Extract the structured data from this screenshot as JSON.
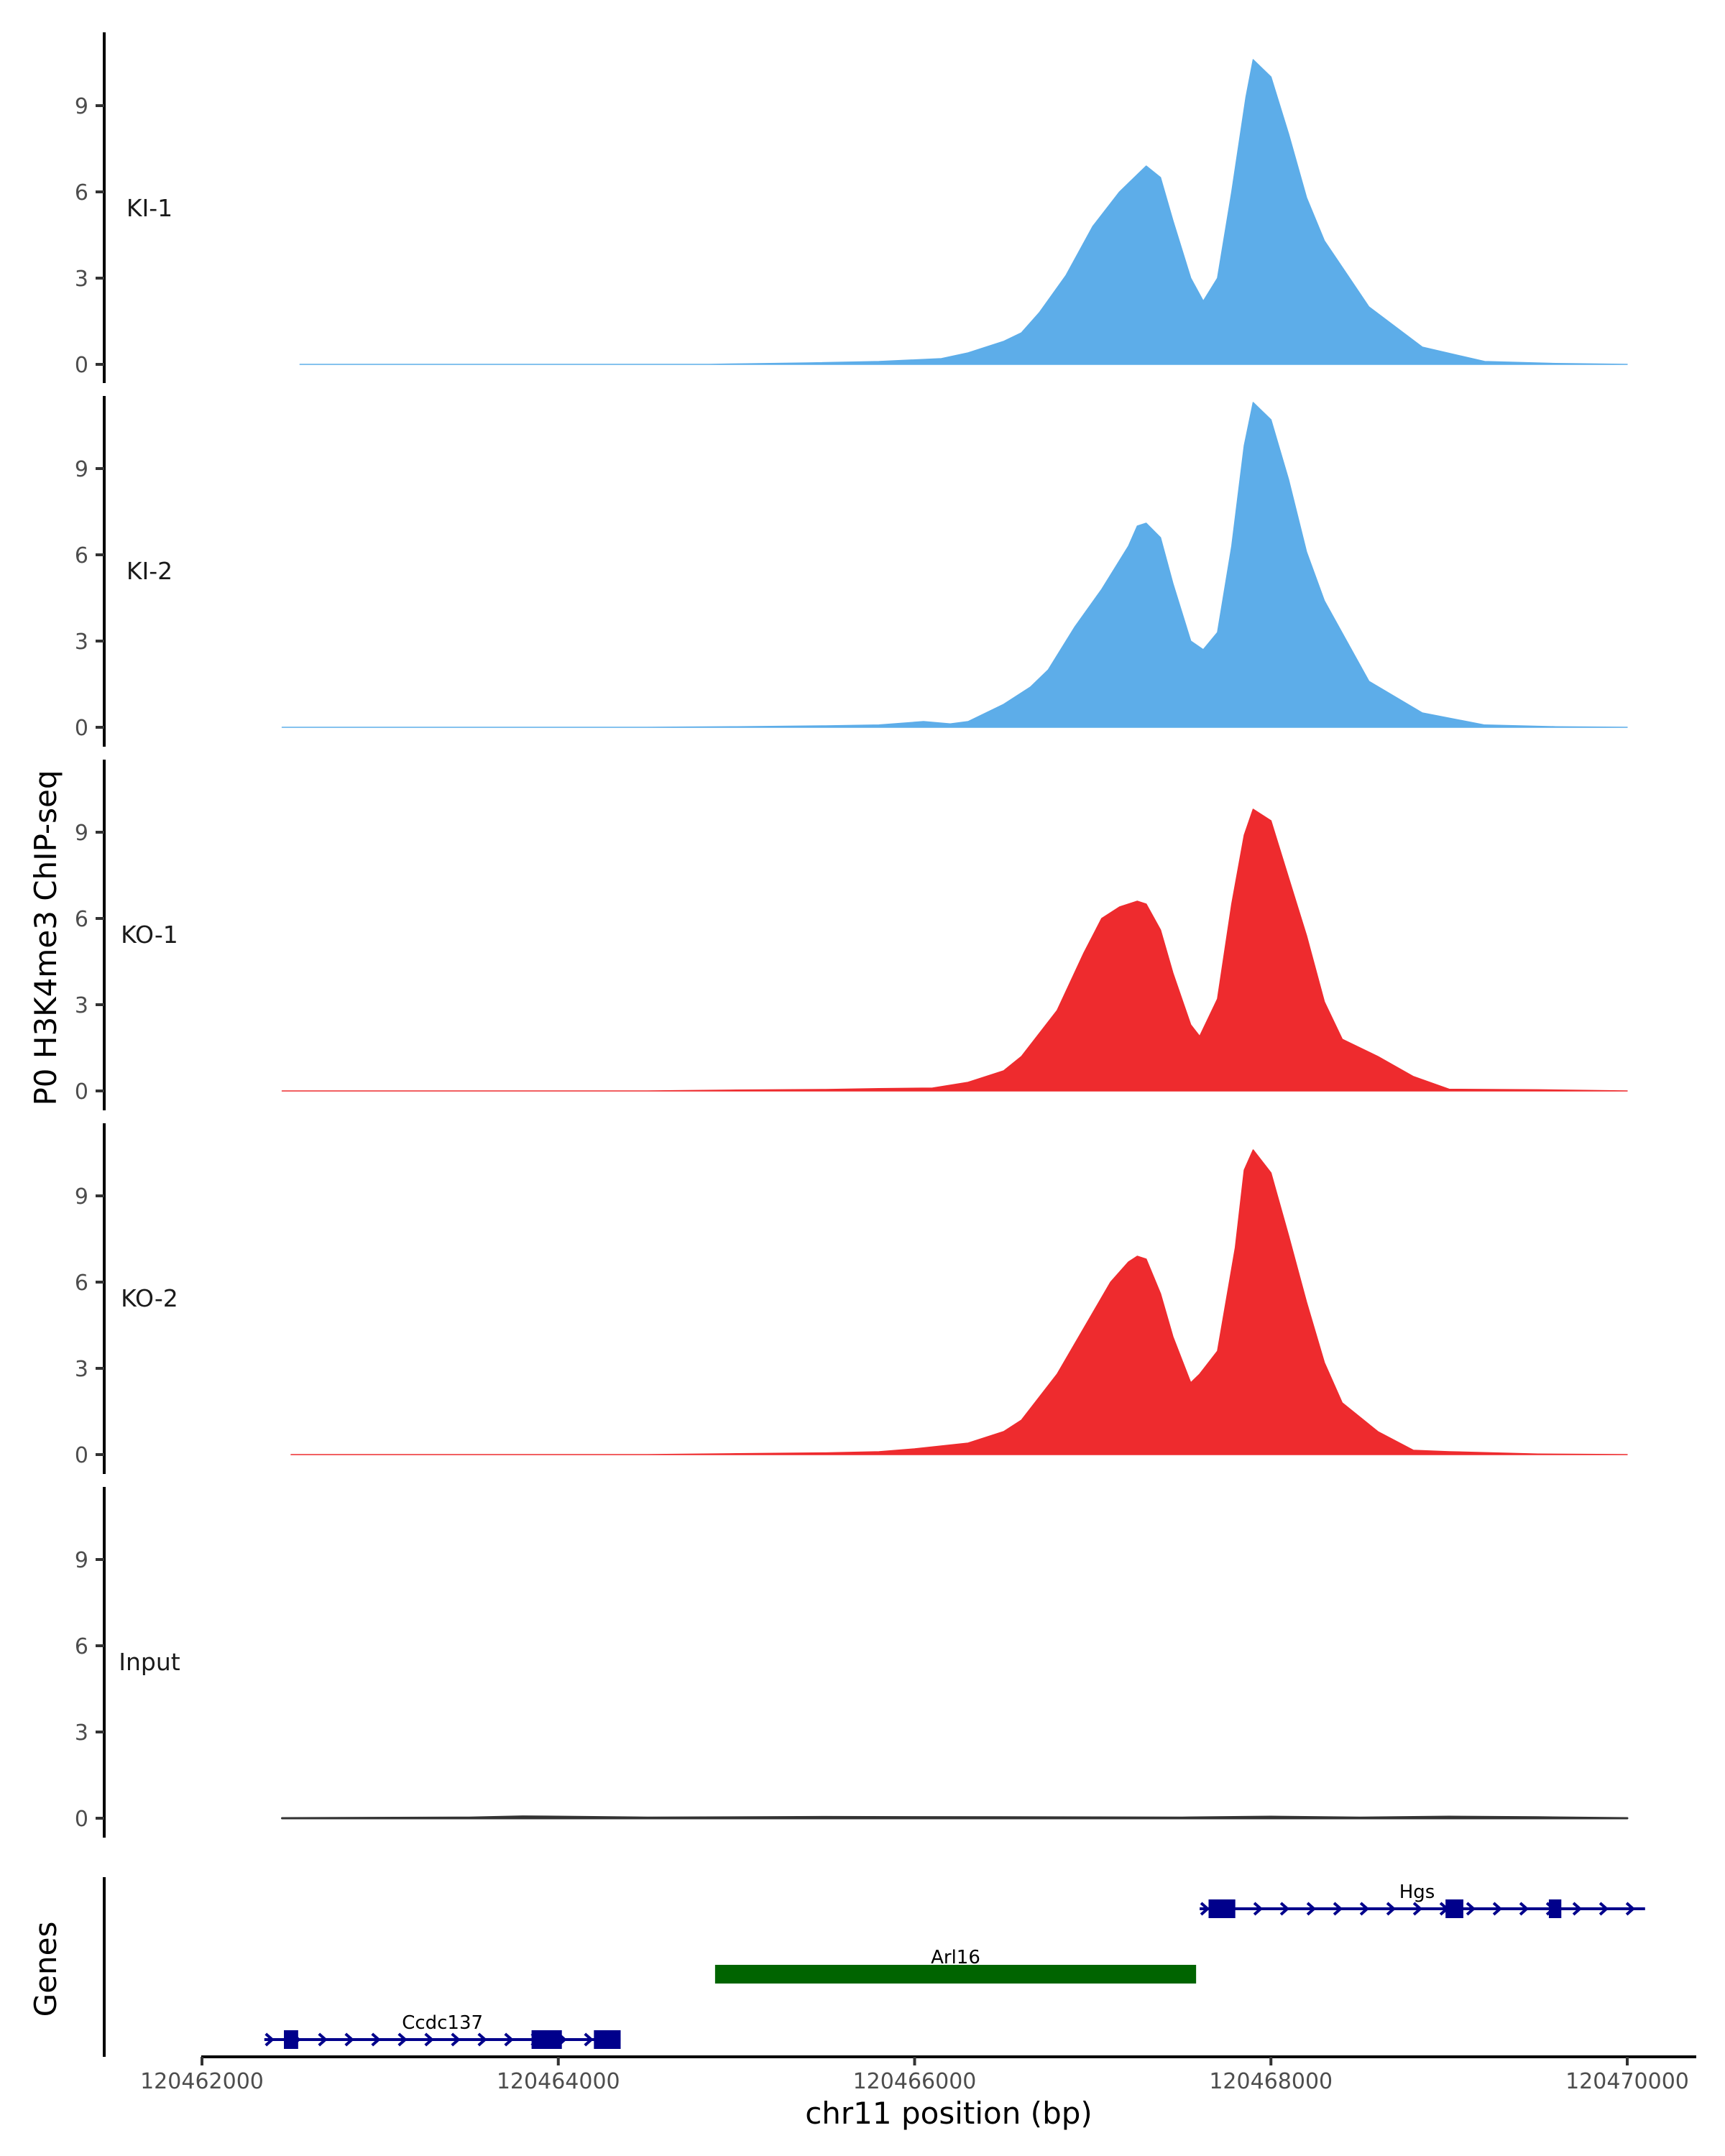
{
  "chart_data": {
    "type": "area",
    "title": "",
    "ylabel": "P0 H3K4me3 ChIP-seq",
    "xlabel": "chr11 position (bp)",
    "xlim": [
      120462000,
      120470400
    ],
    "ylim": [
      0,
      11.5
    ],
    "yticks": [
      0,
      3,
      6,
      9
    ],
    "xticks": [
      120462000,
      120464000,
      120466000,
      120468000,
      120470000
    ],
    "xtick_labels": [
      "120462000",
      "120464000",
      "120466000",
      "120468000",
      "120470000"
    ],
    "colors": {
      "KI": "#5dade9",
      "KO": "#ee2b2e",
      "Input": "#333333",
      "gene_blue": "#00008b",
      "gene_green": "#006400"
    },
    "tracks": [
      {
        "name": "KI-1",
        "group": "KI",
        "x": [
          120462550,
          120463800,
          120464500,
          120464850,
          120465050,
          120465400,
          120465800,
          120466150,
          120466300,
          120466500,
          120466600,
          120466700,
          120466850,
          120467000,
          120467150,
          120467250,
          120467300,
          120467380,
          120467450,
          120467550,
          120467620,
          120467700,
          120467780,
          120467860,
          120467900,
          120468000,
          120468100,
          120468200,
          120468300,
          120468550,
          120468850,
          120469200,
          120469600,
          120470000
        ],
        "values": [
          0,
          0,
          0,
          0,
          0.02,
          0.05,
          0.1,
          0.2,
          0.4,
          0.8,
          1.1,
          1.8,
          3.1,
          4.8,
          6.0,
          6.6,
          6.9,
          6.5,
          5.0,
          3.0,
          2.2,
          3.0,
          6.0,
          9.3,
          10.6,
          10.0,
          8.0,
          5.8,
          4.3,
          2.0,
          0.6,
          0.1,
          0.03,
          0
        ]
      },
      {
        "name": "KI-2",
        "group": "KI",
        "x": [
          120462450,
          120463500,
          120464500,
          120465000,
          120465500,
          120465800,
          120466050,
          120466200,
          120466300,
          120466500,
          120466650,
          120466750,
          120466900,
          120467050,
          120467200,
          120467250,
          120467300,
          120467380,
          120467450,
          120467550,
          120467620,
          120467700,
          120467780,
          120467850,
          120467900,
          120468000,
          120468100,
          120468200,
          120468300,
          120468550,
          120468850,
          120469200,
          120469600,
          120470000
        ],
        "values": [
          0,
          0,
          0,
          0.02,
          0.05,
          0.08,
          0.2,
          0.12,
          0.2,
          0.8,
          1.4,
          2.0,
          3.5,
          4.8,
          6.3,
          7.0,
          7.1,
          6.6,
          5.0,
          3.0,
          2.7,
          3.3,
          6.3,
          9.8,
          11.3,
          10.7,
          8.6,
          6.1,
          4.4,
          1.6,
          0.5,
          0.08,
          0.02,
          0
        ]
      },
      {
        "name": "KO-1",
        "group": "KO",
        "x": [
          120462450,
          120463500,
          120464500,
          120465000,
          120465500,
          120465800,
          120466100,
          120466300,
          120466500,
          120466600,
          120466800,
          120466950,
          120467050,
          120467150,
          120467250,
          120467300,
          120467380,
          120467450,
          120467550,
          120467600,
          120467700,
          120467780,
          120467850,
          120467900,
          120468000,
          120468100,
          120468200,
          120468300,
          120468400,
          120468600,
          120468800,
          120469000,
          120469500,
          120470000
        ],
        "values": [
          0,
          0,
          0,
          0.03,
          0.05,
          0.08,
          0.1,
          0.3,
          0.7,
          1.2,
          2.8,
          4.8,
          6.0,
          6.4,
          6.6,
          6.5,
          5.6,
          4.1,
          2.3,
          1.9,
          3.2,
          6.5,
          8.9,
          9.8,
          9.4,
          7.4,
          5.4,
          3.1,
          1.8,
          1.2,
          0.5,
          0.06,
          0.04,
          0
        ]
      },
      {
        "name": "KO-2",
        "group": "KO",
        "x": [
          120462500,
          120463500,
          120464500,
          120465000,
          120465500,
          120465800,
          120466000,
          120466300,
          120466500,
          120466600,
          120466800,
          120466950,
          120467100,
          120467200,
          120467250,
          120467300,
          120467380,
          120467450,
          120467550,
          120467600,
          120467700,
          120467800,
          120467850,
          120467900,
          120468000,
          120468100,
          120468200,
          120468300,
          120468400,
          120468600,
          120468800,
          120469000,
          120469500,
          120470000
        ],
        "values": [
          0,
          0,
          0,
          0.03,
          0.06,
          0.1,
          0.2,
          0.4,
          0.8,
          1.2,
          2.8,
          4.4,
          6.0,
          6.7,
          6.9,
          6.8,
          5.6,
          4.1,
          2.5,
          2.8,
          3.6,
          7.2,
          9.9,
          10.6,
          9.8,
          7.6,
          5.3,
          3.2,
          1.8,
          0.8,
          0.15,
          0.1,
          0.02,
          0
        ]
      },
      {
        "name": "Input",
        "group": "Input",
        "x": [
          120462450,
          120463500,
          120463800,
          120464500,
          120465500,
          120466500,
          120467500,
          120468000,
          120468500,
          120469000,
          120469500,
          120470000
        ],
        "values": [
          0,
          0.02,
          0.06,
          0.02,
          0.04,
          0.03,
          0.02,
          0.05,
          0.02,
          0.05,
          0.03,
          0
        ]
      }
    ],
    "genes": [
      {
        "name": "Ccdc137",
        "start": 120462350,
        "end": 120464350,
        "strand": "+",
        "color": "gene_blue",
        "row": 0,
        "exons": [
          [
            120462460,
            120462540
          ],
          [
            120463850,
            120464020
          ],
          [
            120464200,
            120464350
          ]
        ],
        "label_pos": 120463350
      },
      {
        "name": "Arl16",
        "start": 120464880,
        "end": 120467580,
        "strand": "-",
        "color": "gene_green",
        "row": 1,
        "exons": [
          [
            120464880,
            120467580
          ]
        ],
        "label_pos": 120466230
      },
      {
        "name": "Hgs",
        "start": 120467600,
        "end": 120470100,
        "strand": "+",
        "color": "gene_blue",
        "row": 2,
        "exons": [
          [
            120467650,
            120467800
          ],
          [
            120468980,
            120469080
          ],
          [
            120469560,
            120469630
          ]
        ],
        "label_pos": 120468820
      }
    ],
    "gene_track_label": "Genes"
  }
}
